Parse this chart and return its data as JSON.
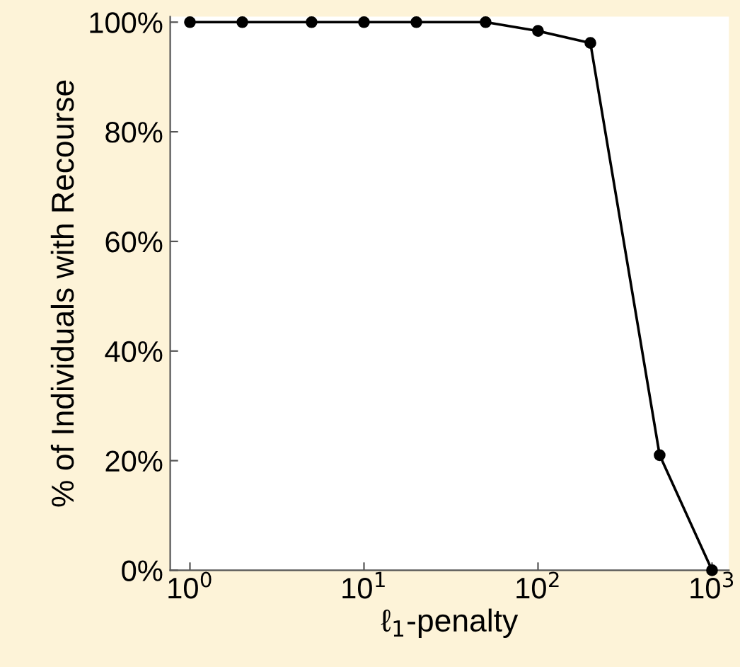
{
  "chart_data": {
    "type": "line",
    "xlabel": "ℓ$_{1}$-penalty",
    "ylabel": "% of Individuals with Recourse",
    "x": [
      1,
      2,
      5,
      10,
      20,
      50,
      100,
      200,
      500,
      1000
    ],
    "series": [
      {
        "color": "#000000",
        "values": [
          100,
          100,
          100,
          100,
          100,
          100,
          98.4,
          96.2,
          21,
          0
        ]
      }
    ],
    "log": "x",
    "marker": "circle",
    "line_style": "solid",
    "grid": false,
    "legend": false,
    "xlim": [
      0.77,
      1250
    ],
    "xticks": [
      {
        "value": 1,
        "label": "10$^{0}$"
      },
      {
        "value": 10,
        "label": "10$^{1}$"
      },
      {
        "value": 100,
        "label": "10$^{2}$"
      },
      {
        "value": 1000,
        "label": "10$^{3}$"
      }
    ],
    "ylim": [
      0,
      101
    ],
    "yticks": [
      {
        "value": 0,
        "label": "0%"
      },
      {
        "value": 20,
        "label": "20%"
      },
      {
        "value": 40,
        "label": "40%"
      },
      {
        "value": 60,
        "label": "60%"
      },
      {
        "value": 80,
        "label": "80%"
      },
      {
        "value": 100,
        "label": "100%"
      }
    ]
  }
}
